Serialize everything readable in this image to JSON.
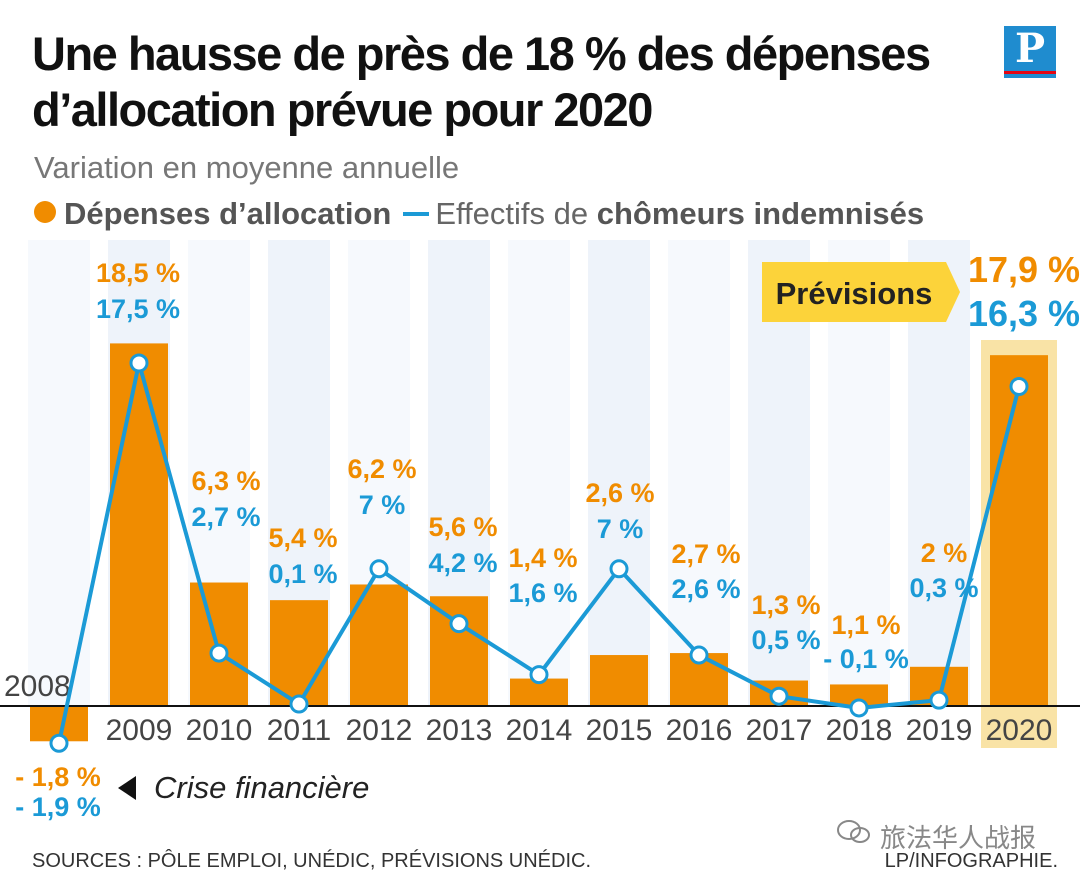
{
  "title": "Une hausse de près de 18 % des dépenses d’allocation prévue pour 2020",
  "subtitle": "Variation en moyenne annuelle",
  "legend": {
    "spending": "Dépenses d’allocation",
    "beneficiaries_prefix": "Effectifs de",
    "beneficiaries_bold": "chômeurs indemnisés"
  },
  "logo_letter": "P",
  "forecast_label": "Prévisions",
  "annotation": "Crise financière",
  "sources": "SOURCES : PÔLE EMPLOI, UNÉDIC, PRÉVISIONS UNÉDIC.",
  "credit": "LP/INFOGRAPHIE.",
  "watermark": "旅法华人战报",
  "colors": {
    "orange": "#f08c00",
    "blue": "#1b9ad6",
    "forecast": "#f9e3a6",
    "label_box": "#fcd33a"
  },
  "chart_data": {
    "type": "bar",
    "title": "Une hausse de près de 18 % des dépenses d’allocation prévue pour 2020",
    "ylabel": "Variation en moyenne annuelle (%)",
    "categories": [
      "2008",
      "2009",
      "2010",
      "2011",
      "2012",
      "2013",
      "2014",
      "2015",
      "2016",
      "2017",
      "2018",
      "2019",
      "2020"
    ],
    "series": [
      {
        "name": "Dépenses d’allocation",
        "type": "bar",
        "values": [
          -1.8,
          18.5,
          6.3,
          5.4,
          6.2,
          5.6,
          1.4,
          2.6,
          2.7,
          1.3,
          1.1,
          2,
          17.9
        ],
        "labels": [
          "- 1,8 %",
          "18,5 %",
          "6,3 %",
          "5,4 %",
          "6,2 %",
          "5,6 %",
          "1,4 %",
          "2,6 %",
          "2,7 %",
          "1,3 %",
          "1,1 %",
          "2 %",
          "17,9 %"
        ]
      },
      {
        "name": "Effectifs de chômeurs indemnisés",
        "type": "line",
        "values": [
          -1.9,
          17.5,
          2.7,
          0.1,
          7,
          4.2,
          1.6,
          7,
          2.6,
          0.5,
          -0.1,
          0.3,
          16.3
        ],
        "labels": [
          "- 1,9 %",
          "17,5 %",
          "2,7 %",
          "0,1 %",
          "7 %",
          "4,2 %",
          "1,6 %",
          "7 %",
          "2,6 %",
          "0,5 %",
          "- 0,1 %",
          "0,3 %",
          "16,3 %"
        ]
      }
    ],
    "forecast_category": "2020",
    "ylim": [
      -2,
      19.5
    ]
  }
}
